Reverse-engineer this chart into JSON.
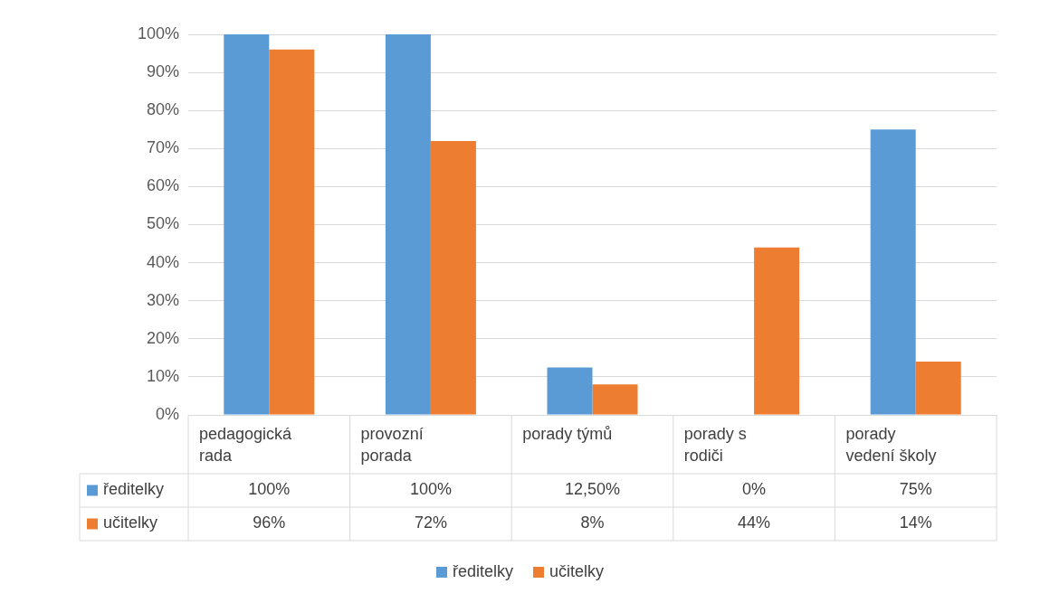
{
  "chart_data": {
    "type": "bar",
    "categories": [
      "pedagogická rada",
      "provozní porada",
      "porady týmů",
      "porady s rodiči",
      "porady vedení školy"
    ],
    "series": [
      {
        "name": "ředitelky",
        "color": "#5b9bd5",
        "values": [
          100,
          100,
          12.5,
          0,
          75
        ],
        "value_labels": [
          "100%",
          "100%",
          "12,50%",
          "0%",
          "75%"
        ]
      },
      {
        "name": "učitelky",
        "color": "#ed7d31",
        "values": [
          96,
          72,
          8,
          44,
          14
        ],
        "value_labels": [
          "96%",
          "72%",
          "8%",
          "44%",
          "14%"
        ]
      }
    ],
    "ylim": [
      0,
      100
    ],
    "yticks": [
      {
        "value": 0,
        "label": "0%"
      },
      {
        "value": 10,
        "label": "10%"
      },
      {
        "value": 20,
        "label": "20%"
      },
      {
        "value": 30,
        "label": "30%"
      },
      {
        "value": 40,
        "label": "40%"
      },
      {
        "value": 50,
        "label": "50%"
      },
      {
        "value": 60,
        "label": "60%"
      },
      {
        "value": 70,
        "label": "70%"
      },
      {
        "value": 80,
        "label": "80%"
      },
      {
        "value": 90,
        "label": "90%"
      },
      {
        "value": 100,
        "label": "100%"
      }
    ],
    "grid": "y",
    "legend": "bottom"
  }
}
